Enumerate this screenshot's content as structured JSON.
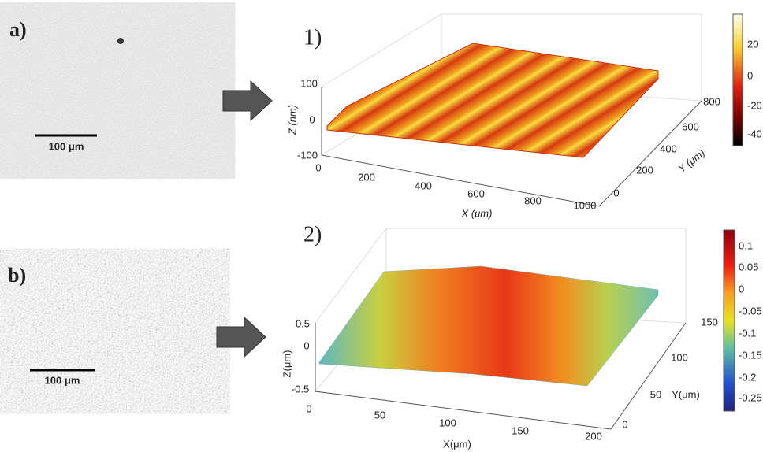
{
  "panel_a": {
    "label": "a)",
    "scale_bar": "100 μm"
  },
  "panel_b": {
    "label": "b)",
    "scale_bar": "100 μm"
  },
  "plot_1": {
    "label": "1)",
    "x_label": "X (μm)",
    "y_label": "Y (μm)",
    "z_label": "Z (nm)",
    "x_ticks": [
      0,
      200,
      400,
      600,
      800,
      1000
    ],
    "y_ticks": [
      0,
      200,
      400,
      600,
      800
    ],
    "z_ticks": [
      100,
      0,
      -100
    ],
    "colorbar_ticks": [
      20,
      0,
      -20,
      -40
    ]
  },
  "plot_2": {
    "label": "2)",
    "x_label": "X(μm)",
    "y_label": "Y(μm)",
    "z_label": "Z(μm)",
    "x_ticks": [
      0,
      50,
      100,
      150,
      200
    ],
    "y_ticks": [
      0,
      50,
      100,
      150
    ],
    "z_ticks": [
      0.5,
      0,
      -0.5
    ],
    "colorbar_ticks": [
      0.1,
      0.05,
      0,
      -0.05,
      -0.1,
      -0.15,
      -0.2,
      -0.25
    ]
  }
}
